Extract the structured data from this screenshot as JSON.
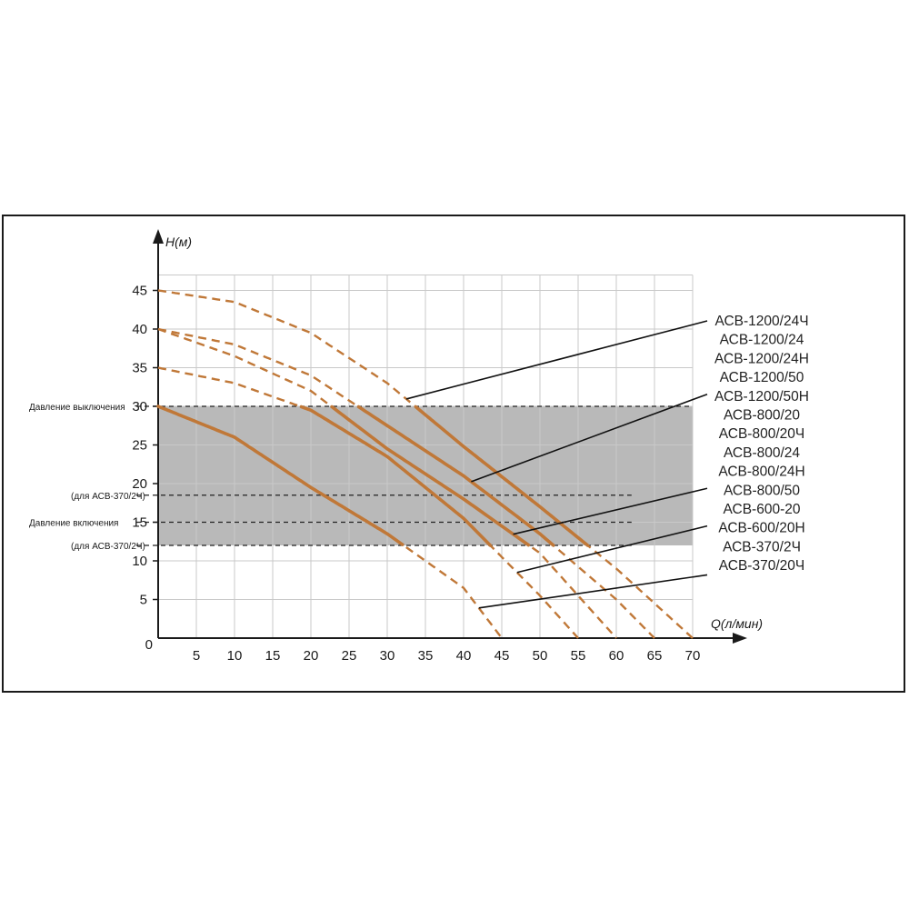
{
  "chart_data": {
    "type": "line",
    "xlabel": "Q(л/мин)",
    "ylabel": "H(м)",
    "xlim": [
      0,
      70
    ],
    "ylim": [
      0,
      45
    ],
    "xticks": [
      5,
      10,
      15,
      20,
      25,
      30,
      35,
      40,
      45,
      50,
      55,
      60,
      65,
      70
    ],
    "yticks": [
      5,
      10,
      15,
      20,
      25,
      30,
      35,
      40,
      45
    ],
    "origin_label": "0",
    "grid": true,
    "shaded_band": {
      "y": [
        12,
        30
      ],
      "x": [
        0,
        70
      ],
      "color": "#b9b9b9"
    },
    "pressure_lines": [
      {
        "y": 30,
        "label": "Давление выключения",
        "x_end": 70
      },
      {
        "y": 18.5,
        "label": "(для АСВ-370/2Ч)",
        "x_end": 62
      },
      {
        "y": 15,
        "label": "Давление включения",
        "x_end": 62
      },
      {
        "y": 12,
        "label": "(для АСВ-370/2Ч)",
        "x_end": 62
      }
    ],
    "curve_color": "#c07838",
    "series": [
      {
        "x": [
          0,
          10,
          20,
          30,
          40,
          50,
          60,
          70
        ],
        "y": [
          45,
          43.5,
          39.5,
          33,
          24.8,
          17,
          9,
          0
        ]
      },
      {
        "x": [
          0,
          10,
          20,
          30,
          40,
          50,
          60,
          65
        ],
        "y": [
          40,
          38,
          34,
          27.5,
          21,
          13.5,
          5,
          0
        ]
      },
      {
        "x": [
          0,
          10,
          20,
          30,
          40,
          50,
          60
        ],
        "y": [
          40,
          36.5,
          32,
          24.5,
          18,
          11,
          0
        ]
      },
      {
        "x": [
          0,
          10,
          20,
          30,
          40,
          50,
          55
        ],
        "y": [
          35,
          33,
          29.5,
          23.5,
          15.5,
          5.5,
          0
        ]
      },
      {
        "x": [
          0,
          10,
          20,
          30,
          40,
          45
        ],
        "y": [
          30,
          26,
          19.5,
          13.5,
          6.5,
          0
        ]
      }
    ],
    "models": [
      "АСВ-1200/24Ч",
      "АСВ-1200/24",
      "АСВ-1200/24Н",
      "АСВ-1200/50",
      "АСВ-1200/50Н",
      "АСВ-800/20",
      "АСВ-800/20Ч",
      "АСВ-800/24",
      "АСВ-800/24Н",
      "АСВ-800/50",
      "АСВ-600-20",
      "АСВ-600/20Н",
      "АСВ-370/2Ч",
      "АСВ-370/20Ч"
    ],
    "leaders": [
      {
        "series": 0,
        "x": 32.5
      },
      {
        "series": 1,
        "x": 41
      },
      {
        "series": 2,
        "x": 46.5
      },
      {
        "series": 3,
        "x": 47
      },
      {
        "series": 4,
        "x": 42
      }
    ]
  }
}
